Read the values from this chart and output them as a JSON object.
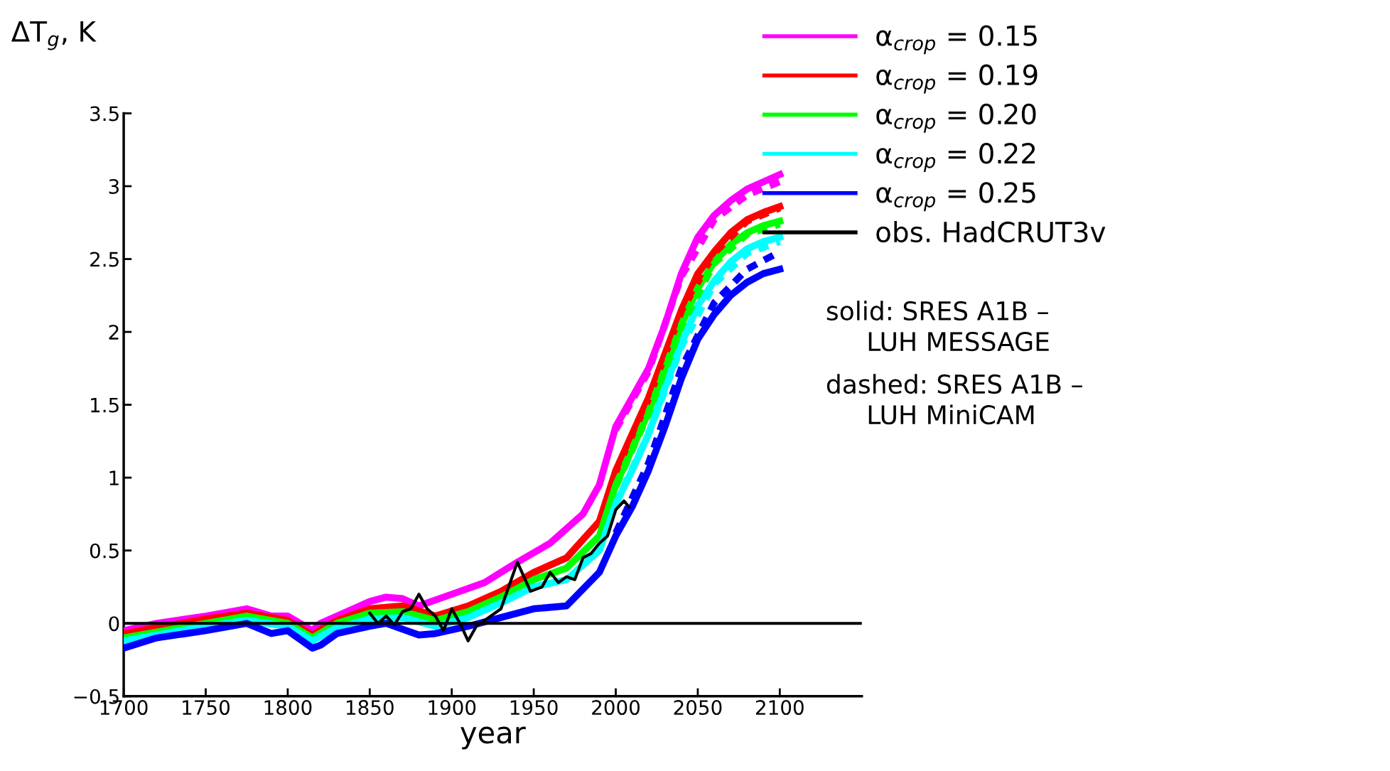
{
  "chart_data": {
    "type": "line",
    "xlabel": "year",
    "ylabel": "ΔT$_{g}$, K",
    "xlim": [
      1700,
      2150
    ],
    "ylim": [
      -0.5,
      3.5
    ],
    "xticks": [
      1700,
      1750,
      1800,
      1850,
      1900,
      1950,
      2000,
      2050,
      2100
    ],
    "yticks": [
      {
        "value": -0.5,
        "label": "−0.5"
      },
      0,
      0.5,
      1,
      1.5,
      2,
      2.5,
      3,
      3.5
    ],
    "grid": false,
    "legend": "right",
    "line_style": "solid",
    "marker": "none",
    "ref_lines": [
      {
        "axis": "y",
        "value": 0,
        "color": "#000000"
      }
    ],
    "series": [
      {
        "name": "α$_{crop}$ = 0.15",
        "color": "#ff00ff",
        "x": [
          1700,
          1720,
          1750,
          1775,
          1790,
          1800,
          1815,
          1820,
          1830,
          1850,
          1860,
          1870,
          1880,
          1900,
          1920,
          1940,
          1960,
          1980,
          1990,
          2000,
          2010,
          2020,
          2030,
          2040,
          2050,
          2060,
          2070,
          2080,
          2090,
          2100
        ],
        "values": [
          -0.05,
          0.0,
          0.05,
          0.1,
          0.05,
          0.05,
          -0.05,
          0.0,
          0.05,
          0.15,
          0.18,
          0.17,
          0.12,
          0.2,
          0.28,
          0.42,
          0.55,
          0.75,
          0.95,
          1.35,
          1.55,
          1.75,
          2.05,
          2.4,
          2.65,
          2.8,
          2.9,
          2.98,
          3.03,
          3.08
        ]
      },
      {
        "name": "α$_{crop}$ = 0.19",
        "color": "#ff0000",
        "x": [
          1700,
          1750,
          1775,
          1800,
          1815,
          1830,
          1850,
          1870,
          1890,
          1910,
          1930,
          1950,
          1970,
          1990,
          2000,
          2010,
          2020,
          2030,
          2040,
          2050,
          2060,
          2070,
          2080,
          2090,
          2100
        ],
        "values": [
          -0.07,
          0.03,
          0.07,
          0.02,
          -0.08,
          0.02,
          0.1,
          0.12,
          0.05,
          0.12,
          0.22,
          0.35,
          0.45,
          0.7,
          1.05,
          1.3,
          1.55,
          1.85,
          2.15,
          2.4,
          2.55,
          2.68,
          2.77,
          2.82,
          2.86
        ]
      },
      {
        "name": "α$_{crop}$ = 0.20",
        "color": "#00ff00",
        "x": [
          1700,
          1750,
          1775,
          1800,
          1815,
          1830,
          1850,
          1870,
          1890,
          1910,
          1930,
          1950,
          1970,
          1990,
          2000,
          2010,
          2020,
          2030,
          2040,
          2050,
          2060,
          2070,
          2080,
          2090,
          2100
        ],
        "values": [
          -0.1,
          0.0,
          0.05,
          0.0,
          -0.1,
          0.0,
          0.07,
          0.08,
          0.02,
          0.08,
          0.18,
          0.3,
          0.38,
          0.6,
          0.95,
          1.2,
          1.45,
          1.75,
          2.05,
          2.3,
          2.48,
          2.6,
          2.68,
          2.73,
          2.76
        ]
      },
      {
        "name": "α$_{crop}$ = 0.22",
        "color": "#00ffff",
        "x": [
          1700,
          1750,
          1775,
          1800,
          1815,
          1830,
          1850,
          1870,
          1890,
          1910,
          1930,
          1950,
          1970,
          1990,
          2000,
          2010,
          2020,
          2030,
          2040,
          2050,
          2060,
          2070,
          2080,
          2090,
          2100
        ],
        "values": [
          -0.12,
          -0.02,
          0.02,
          -0.02,
          -0.12,
          -0.03,
          0.03,
          0.04,
          -0.02,
          0.04,
          0.14,
          0.25,
          0.3,
          0.5,
          0.82,
          1.05,
          1.3,
          1.62,
          1.92,
          2.18,
          2.35,
          2.48,
          2.57,
          2.62,
          2.65
        ]
      },
      {
        "name": "α$_{crop}$ = 0.25",
        "color": "#0000ff",
        "x": [
          1700,
          1720,
          1750,
          1775,
          1790,
          1800,
          1815,
          1820,
          1830,
          1850,
          1860,
          1880,
          1890,
          1910,
          1930,
          1950,
          1970,
          1990,
          2000,
          2010,
          2020,
          2030,
          2040,
          2050,
          2060,
          2070,
          2080,
          2090,
          2100
        ],
        "values": [
          -0.17,
          -0.1,
          -0.05,
          0.0,
          -0.07,
          -0.05,
          -0.17,
          -0.15,
          -0.07,
          -0.02,
          0.0,
          -0.08,
          -0.07,
          -0.02,
          0.04,
          0.1,
          0.12,
          0.35,
          0.6,
          0.8,
          1.05,
          1.35,
          1.68,
          1.95,
          2.12,
          2.25,
          2.34,
          2.4,
          2.43
        ]
      },
      {
        "name": "obs. HadCRUT3v",
        "color": "#000000",
        "x": [
          1850,
          1855,
          1860,
          1865,
          1870,
          1875,
          1880,
          1885,
          1890,
          1895,
          1900,
          1905,
          1910,
          1915,
          1920,
          1930,
          1940,
          1948,
          1955,
          1960,
          1965,
          1970,
          1975,
          1980,
          1985,
          1990,
          1995,
          2000,
          2005,
          2008
        ],
        "values": [
          0.07,
          0.0,
          0.05,
          -0.01,
          0.08,
          0.1,
          0.2,
          0.1,
          0.05,
          -0.05,
          0.1,
          0.0,
          -0.12,
          -0.02,
          0.02,
          0.1,
          0.42,
          0.22,
          0.25,
          0.35,
          0.28,
          0.32,
          0.3,
          0.45,
          0.48,
          0.55,
          0.6,
          0.78,
          0.84,
          0.8
        ]
      },
      {
        "color": "#ff00ff",
        "line_style": "dashed",
        "x": [
          2000,
          2020,
          2040,
          2060,
          2080,
          2100
        ],
        "values": [
          1.33,
          1.73,
          2.38,
          2.77,
          2.94,
          3.03
        ]
      },
      {
        "color": "#ff0000",
        "line_style": "dashed",
        "x": [
          2000,
          2020,
          2040,
          2060,
          2080,
          2100
        ],
        "values": [
          1.04,
          1.54,
          2.14,
          2.54,
          2.76,
          2.85
        ]
      },
      {
        "color": "#00ff00",
        "line_style": "dashed",
        "x": [
          2000,
          2020,
          2040,
          2060,
          2080,
          2100
        ],
        "values": [
          0.94,
          1.44,
          2.04,
          2.47,
          2.67,
          2.74
        ]
      },
      {
        "color": "#00ffff",
        "line_style": "dashed",
        "x": [
          2000,
          2020,
          2040,
          2060,
          2080,
          2100
        ],
        "values": [
          0.82,
          1.3,
          1.9,
          2.33,
          2.54,
          2.62
        ]
      },
      {
        "color": "#0000ff",
        "line_style": "dashed",
        "x": [
          2000,
          2020,
          2040,
          2060,
          2080,
          2100
        ],
        "values": [
          0.62,
          1.1,
          1.75,
          2.2,
          2.43,
          2.55
        ]
      }
    ],
    "annotations": [
      "solid: SRES A1B –\n     LUH MESSAGE",
      "dashed: SRES A1B –\n     LUH MiniCAM"
    ]
  }
}
